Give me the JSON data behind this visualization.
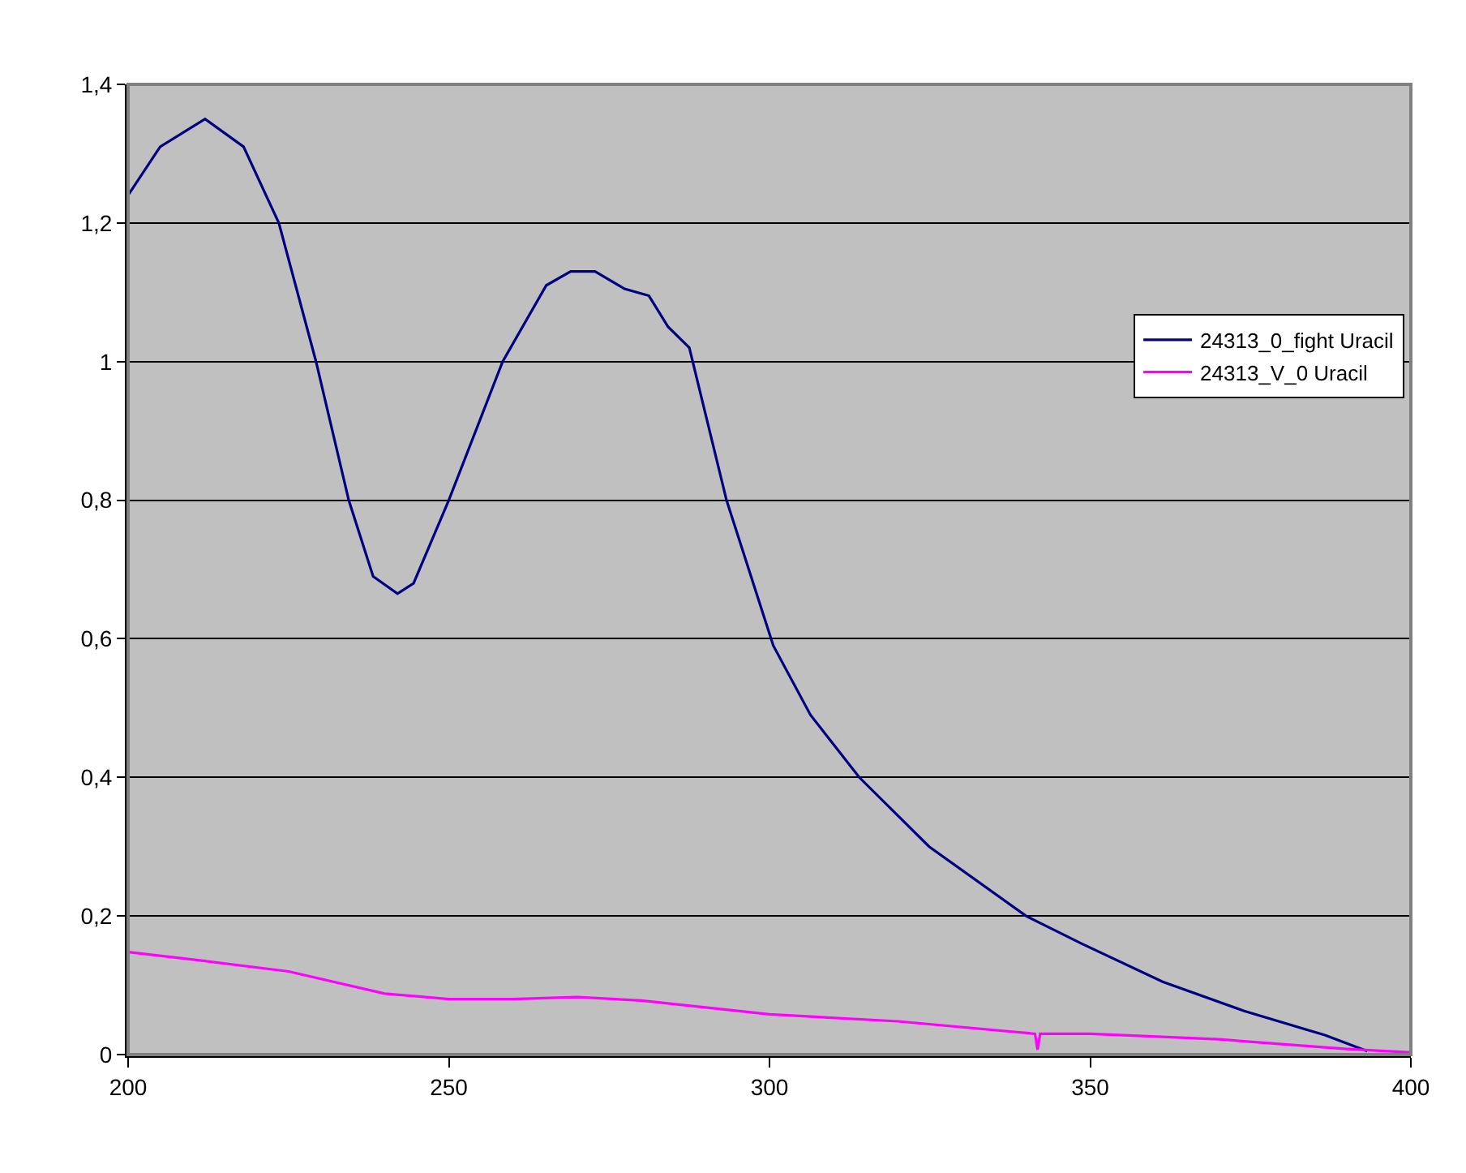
{
  "chart_data": {
    "type": "line",
    "xlim": [
      200,
      400
    ],
    "xticks": [
      200,
      250,
      300,
      350,
      400
    ],
    "ylim": [
      0,
      1.4
    ],
    "yticks": [
      0,
      {
        "value": 0.2,
        "label": "0,2"
      },
      {
        "value": 0.4,
        "label": "0,4"
      },
      {
        "value": 0.6,
        "label": "0,6"
      },
      {
        "value": 0.8,
        "label": "0,8"
      },
      1,
      {
        "value": 1.2,
        "label": "1,2"
      },
      {
        "value": 1.4,
        "label": "1,4"
      }
    ],
    "grid": "y",
    "legend": "right",
    "marker": "none",
    "line_style": "solid",
    "series": [
      {
        "name": "24313_0_fight Uracil",
        "color": "#000080",
        "x": [
          200,
          205,
          212,
          218,
          223.5,
          229.3,
          234.4,
          238.2,
          242,
          244.5,
          250,
          258.4,
          265.2,
          269,
          272.8,
          277.4,
          281.2,
          284.2,
          287.5,
          293.3,
          300.6,
          306.4,
          314,
          324.9,
          340,
          348.7,
          361.3,
          374,
          386.6,
          393.2
        ],
        "values": [
          1.24,
          1.31,
          1.35,
          1.31,
          1.2,
          1.0,
          0.8,
          0.69,
          0.665,
          0.68,
          0.8,
          1.0,
          1.11,
          1.13,
          1.13,
          1.105,
          1.095,
          1.05,
          1.02,
          0.8,
          0.59,
          0.49,
          0.4,
          0.3,
          0.2,
          0.16,
          0.105,
          0.063,
          0.028,
          0.005
        ]
      },
      {
        "name": "24313_V_0 Uracil",
        "color": "#ff00ff",
        "x": [
          200,
          212,
          225,
          240,
          250,
          260,
          270,
          280,
          290,
          300,
          320,
          341.4,
          341.8,
          342.2,
          350,
          370,
          390,
          400
        ],
        "values": [
          0.148,
          0.135,
          0.12,
          0.088,
          0.08,
          0.08,
          0.083,
          0.078,
          0.068,
          0.058,
          0.048,
          0.03,
          0.007,
          0.03,
          0.03,
          0.022,
          0.008,
          0.003
        ]
      }
    ]
  }
}
